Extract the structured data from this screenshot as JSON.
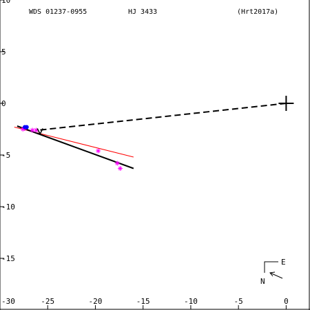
{
  "header": {
    "left": "WDS 01237-0955",
    "center": "HJ 3433",
    "right": "(Hrt2017a)"
  },
  "compass": {
    "north": "N",
    "east": "E"
  },
  "chart_data": {
    "type": "scatter",
    "title": "",
    "xlabel": "",
    "ylabel": "",
    "xlim": [
      -30,
      2.5
    ],
    "ylim": [
      -20,
      10
    ],
    "xticks": [
      -30,
      -25,
      -20,
      -15,
      -10,
      -5,
      0
    ],
    "yticks": [
      10,
      5,
      0,
      -5,
      -10,
      -15
    ],
    "grid": false,
    "colors": {
      "primary": "#000000",
      "orbit_fit": "#000000",
      "linear_fit": "#ff0000",
      "measurement": "#ff00ff",
      "highlight": "#0000ff"
    },
    "primary_star": {
      "x": 0,
      "y": 0
    },
    "linear_fit": {
      "x": [
        -28.5,
        -16.0
      ],
      "y": [
        -2.3,
        -5.2
      ]
    },
    "orbit_fit": {
      "x": [
        -28.2,
        -16.0
      ],
      "y": [
        -2.2,
        -6.3
      ]
    },
    "dashed_line": {
      "x": [
        0,
        -26.0
      ],
      "y": [
        0,
        -2.6
      ]
    },
    "measurements": [
      {
        "x": -27.6,
        "y": -2.5
      },
      {
        "x": -27.4,
        "y": -2.4
      },
      {
        "x": -26.6,
        "y": -2.6
      },
      {
        "x": -26.2,
        "y": -2.6
      },
      {
        "x": -19.7,
        "y": -4.6
      },
      {
        "x": -17.7,
        "y": -5.8
      },
      {
        "x": -17.4,
        "y": -6.3
      }
    ],
    "highlighted_points": [
      {
        "x": -27.4,
        "y": -2.3
      },
      {
        "x": -27.2,
        "y": -2.3
      }
    ],
    "current_position": {
      "x": -25.8,
      "y": -2.7
    }
  }
}
